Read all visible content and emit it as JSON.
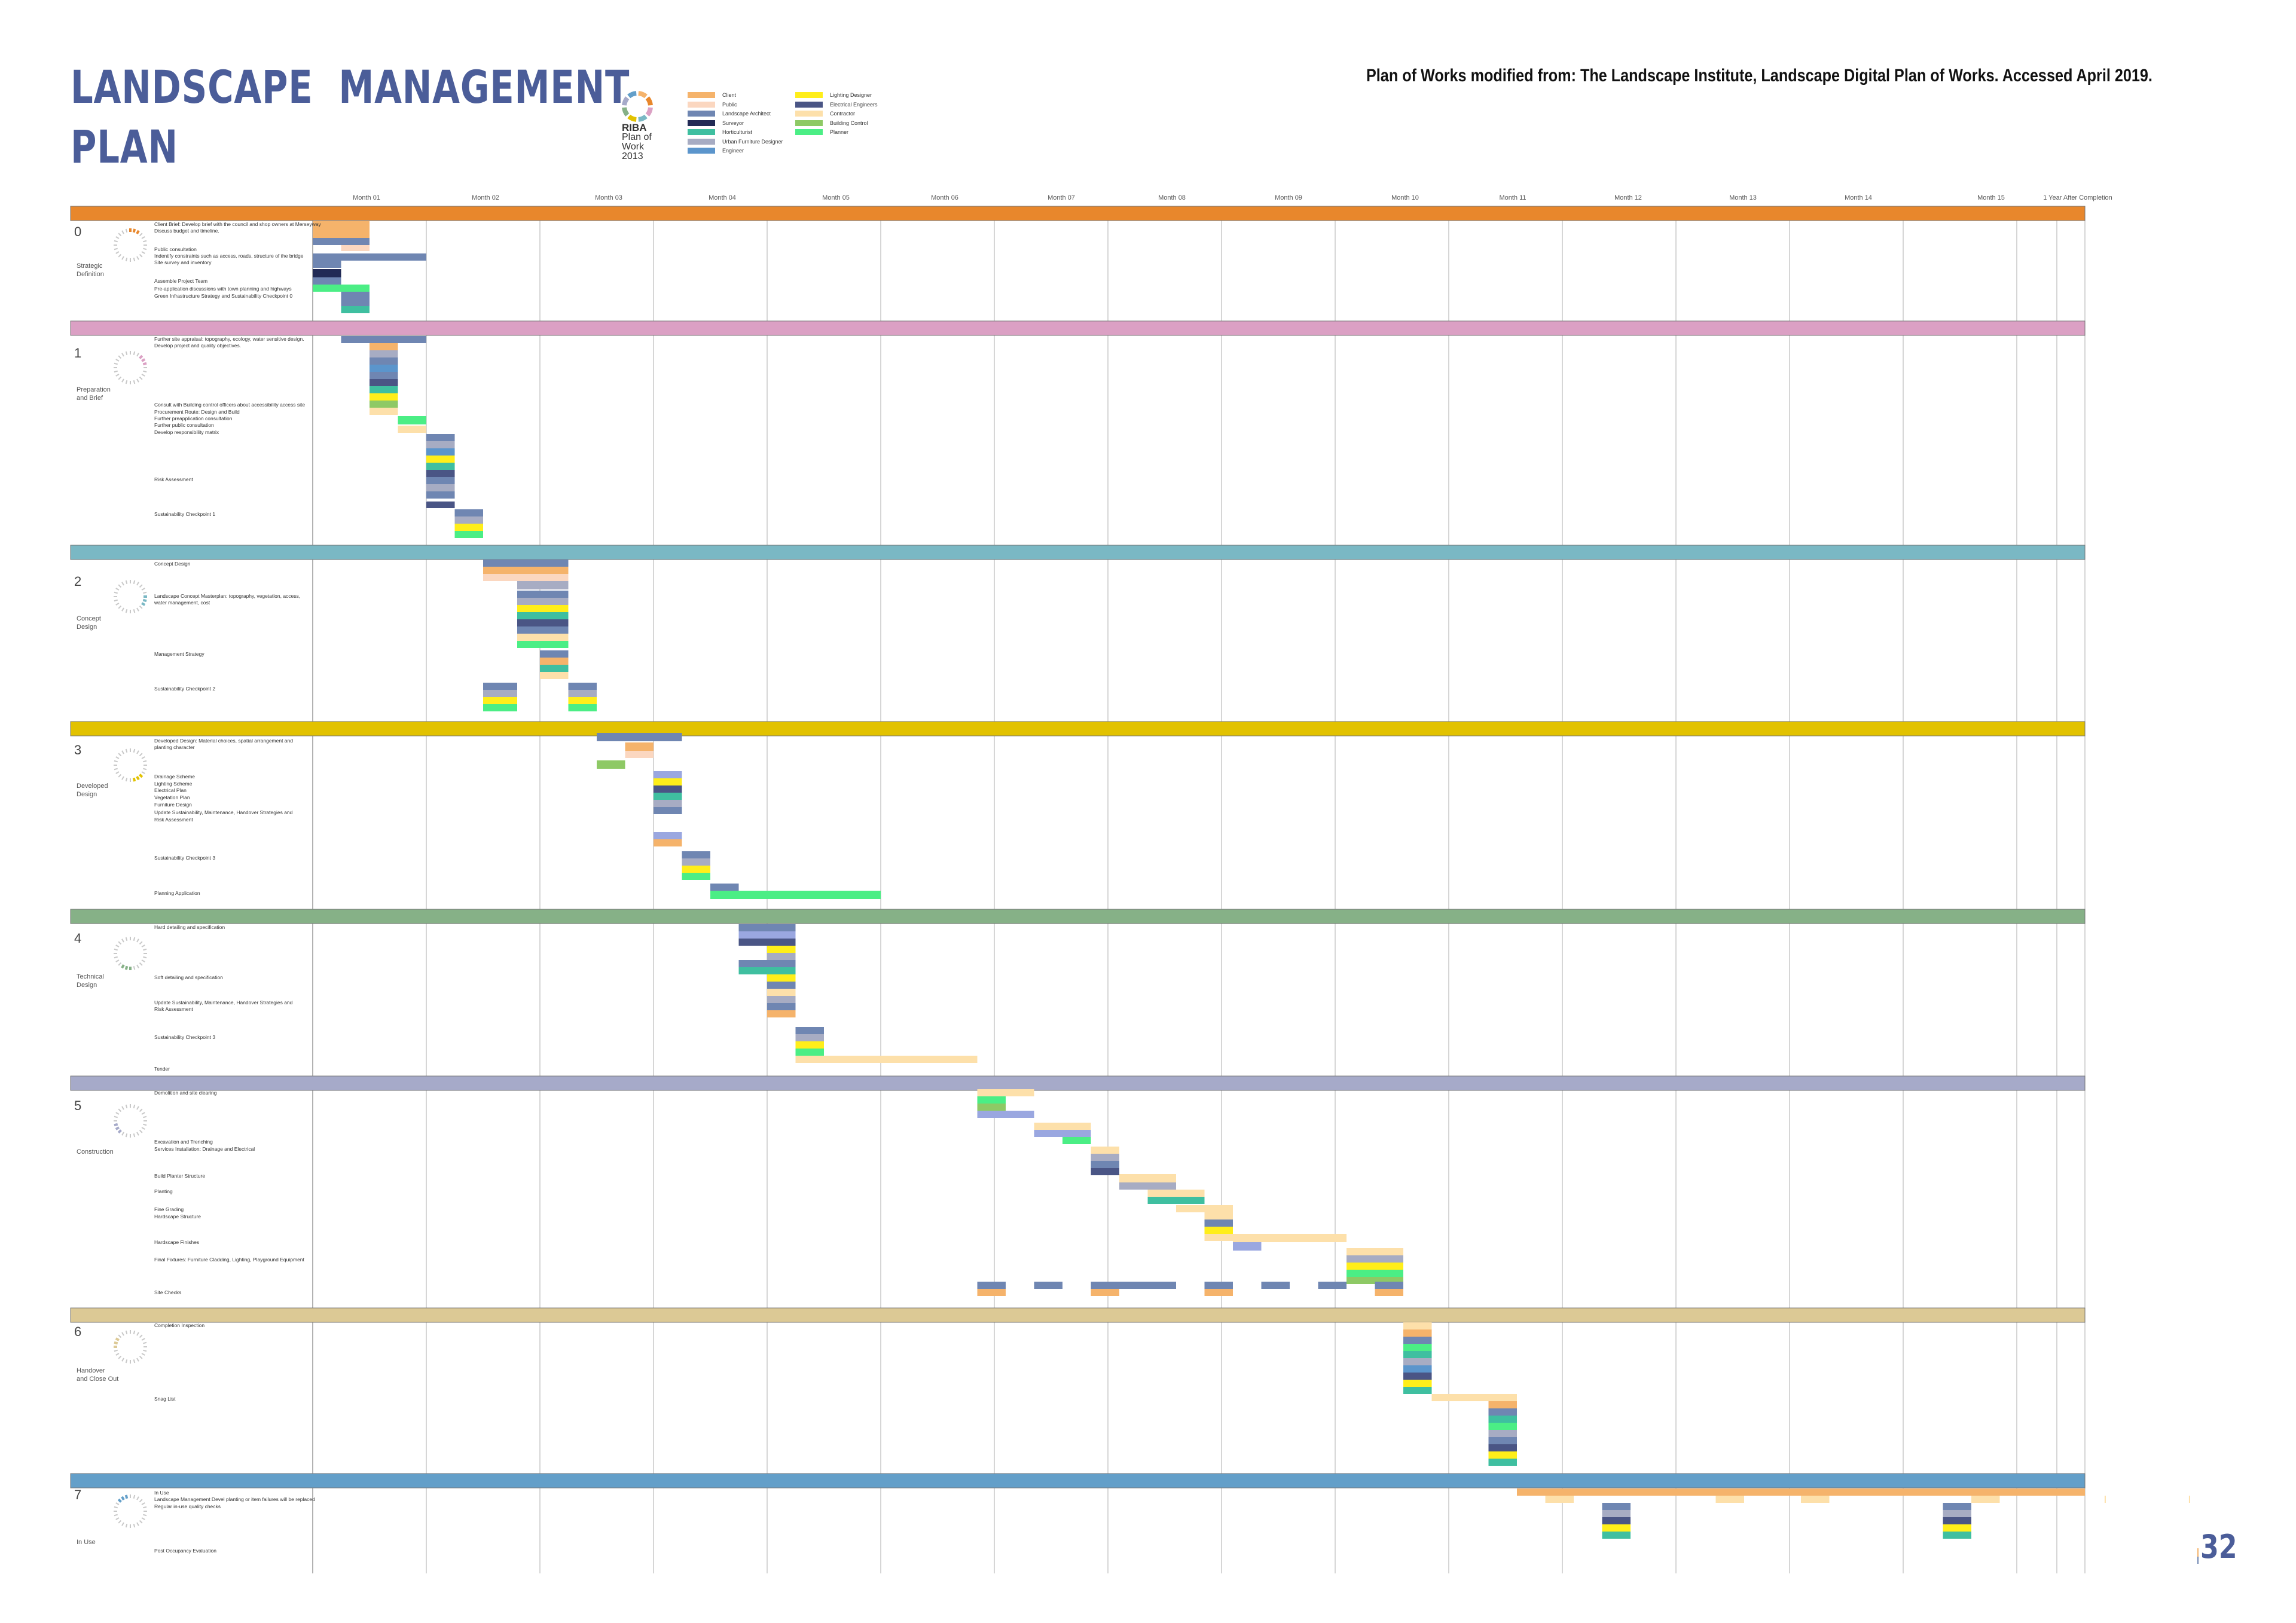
{
  "title": {
    "line1": "LANDSCAPE  MANAGEMENT",
    "line2": "PLAN"
  },
  "credit": "Plan of Works modified from: The Landscape Institute, Landscape Digital Plan of Works. Accessed April 2019.",
  "page_number": "32",
  "riba_logo": {
    "line1": "RIBA",
    "line2": "Plan of",
    "line3": "Work",
    "line4": "2013"
  },
  "colors": {
    "Client": "#f5b36b",
    "Public": "#fbd7c0",
    "Landscape Architect": "#6f86b2",
    "Surveyor": "#222a55",
    "Horticulturist": "#3fbfa0",
    "Urban Furniture Designer": "#a7acc3",
    "Engineer": "#5b95cc",
    "Lighting Designer": "#ffee1a",
    "Electrical Engineers": "#4a5585",
    "Contractor": "#fde0aa",
    "Building Control": "#8ec965",
    "Planner": "#4bee85",
    "Lavender": "#9aa7e0"
  },
  "legend": [
    {
      "label": "Client",
      "color": "#f5b36b"
    },
    {
      "label": "Public",
      "color": "#fbd7c0"
    },
    {
      "label": "Landscape Architect",
      "color": "#6f86b2"
    },
    {
      "label": "Surveyor",
      "color": "#222a55"
    },
    {
      "label": "Horticulturist",
      "color": "#3fbfa0"
    },
    {
      "label": "Urban Furniture Designer",
      "color": "#a7acc3"
    },
    {
      "label": "Engineer",
      "color": "#5b95cc"
    },
    {
      "label": "Lighting Designer",
      "color": "#ffee1a"
    },
    {
      "label": "Electrical Engineers",
      "color": "#4a5585"
    },
    {
      "label": "Contractor",
      "color": "#fde0aa"
    },
    {
      "label": "Building Control",
      "color": "#8ec965"
    },
    {
      "label": "Planner",
      "color": "#4bee85"
    }
  ],
  "months": [
    "Month 01",
    "Month 02",
    "Month 03",
    "Month 04",
    "Month 05",
    "Month 06",
    "Month 07",
    "Month 08",
    "Month 09",
    "Month 10",
    "Month 11",
    "Month 12",
    "Month 13",
    "Month 14",
    "Month 15",
    "1 Year After Completion"
  ],
  "stages": [
    {
      "num": "0",
      "name": [
        "Strategic",
        "Definition"
      ],
      "color": "#e8872c",
      "tasks": [
        "Client Brief: Develop brief with the council and shop owners at Merseyway",
        "Discuss budget and timeline.",
        "Public consultation",
        "Indentify constraints such as access, roads, structure of the bridge",
        "Site survey and inventory",
        "Assemble Project Team",
        "Pre-application discussions with town planning and highways",
        "Green Infrastructure Strategy and Sustainability Checkpoint 0"
      ]
    },
    {
      "num": "1",
      "name": [
        "Preparation",
        "and Brief"
      ],
      "color": "#dba0c4",
      "tasks": [
        "Further site appraisal: topography, ecology, water sensitive design.",
        "Develop project and quality objectives.",
        "Consult with Building control officers about accessibility access site",
        "Procurement Route: Design and Build",
        "Further preapplication consultation",
        "Further public consultation",
        "Develop responsibility matrix",
        "Risk Assessment",
        "Sustainability Checkpoint 1"
      ]
    },
    {
      "num": "2",
      "name": [
        "Concept",
        "Design"
      ],
      "color": "#7ab8c4",
      "tasks": [
        "Concept Design",
        "Landscape Concept Masterplan: topography, vegetation, access,",
        "water management, cost",
        "Management Strategy",
        "Sustainability Checkpoint 2"
      ]
    },
    {
      "num": "3",
      "name": [
        "Developed",
        "Design"
      ],
      "color": "#e2c200",
      "tasks": [
        "Developed Design: Material choices, spatial arrangement and",
        "planting character",
        "Drainage Scheme",
        "Lighting Scheme",
        "Electrical Plan",
        "Vegetation Plan",
        "Furniture Design",
        "Update Sustainability, Maintenance, Handover Strategies and",
        "Risk Assessment",
        "Sustainability Checkpoint 3",
        "Planning Application"
      ]
    },
    {
      "num": "4",
      "name": [
        "Technical",
        "Design"
      ],
      "color": "#86b187",
      "tasks": [
        "Hard detailing and specification",
        "Soft detailing and specification",
        "Update Sustainability, Maintenance, Handover Strategies and",
        "Risk Assessment",
        "Sustainability Checkpoint 3",
        "Tender"
      ]
    },
    {
      "num": "5",
      "name": [
        "Construction"
      ],
      "color": "#a6aac9",
      "tasks": [
        "Demolition and site clearing",
        "Excavation and Trenching",
        "Services Installation: Drainage and Electrical",
        "Build Planter Structure",
        "Planting",
        "Fine Grading",
        "Hardscape Structure",
        "Hardscape Finishes",
        "Final Fixtures: Furniture Cladding, Lighting, Playground Equipment",
        "Site Checks"
      ]
    },
    {
      "num": "6",
      "name": [
        "Handover",
        "and Close Out"
      ],
      "color": "#dcc995",
      "tasks": [
        "Completion Inspection",
        "Snag List"
      ]
    },
    {
      "num": "7",
      "name": [
        "In Use"
      ],
      "color": "#639fc9",
      "tasks": [
        "In Use",
        "Landscape Management Devel planting or item failures will be replaced",
        "Regular in-use quality checks",
        "Post Occupancy Evaluation"
      ]
    }
  ]
}
